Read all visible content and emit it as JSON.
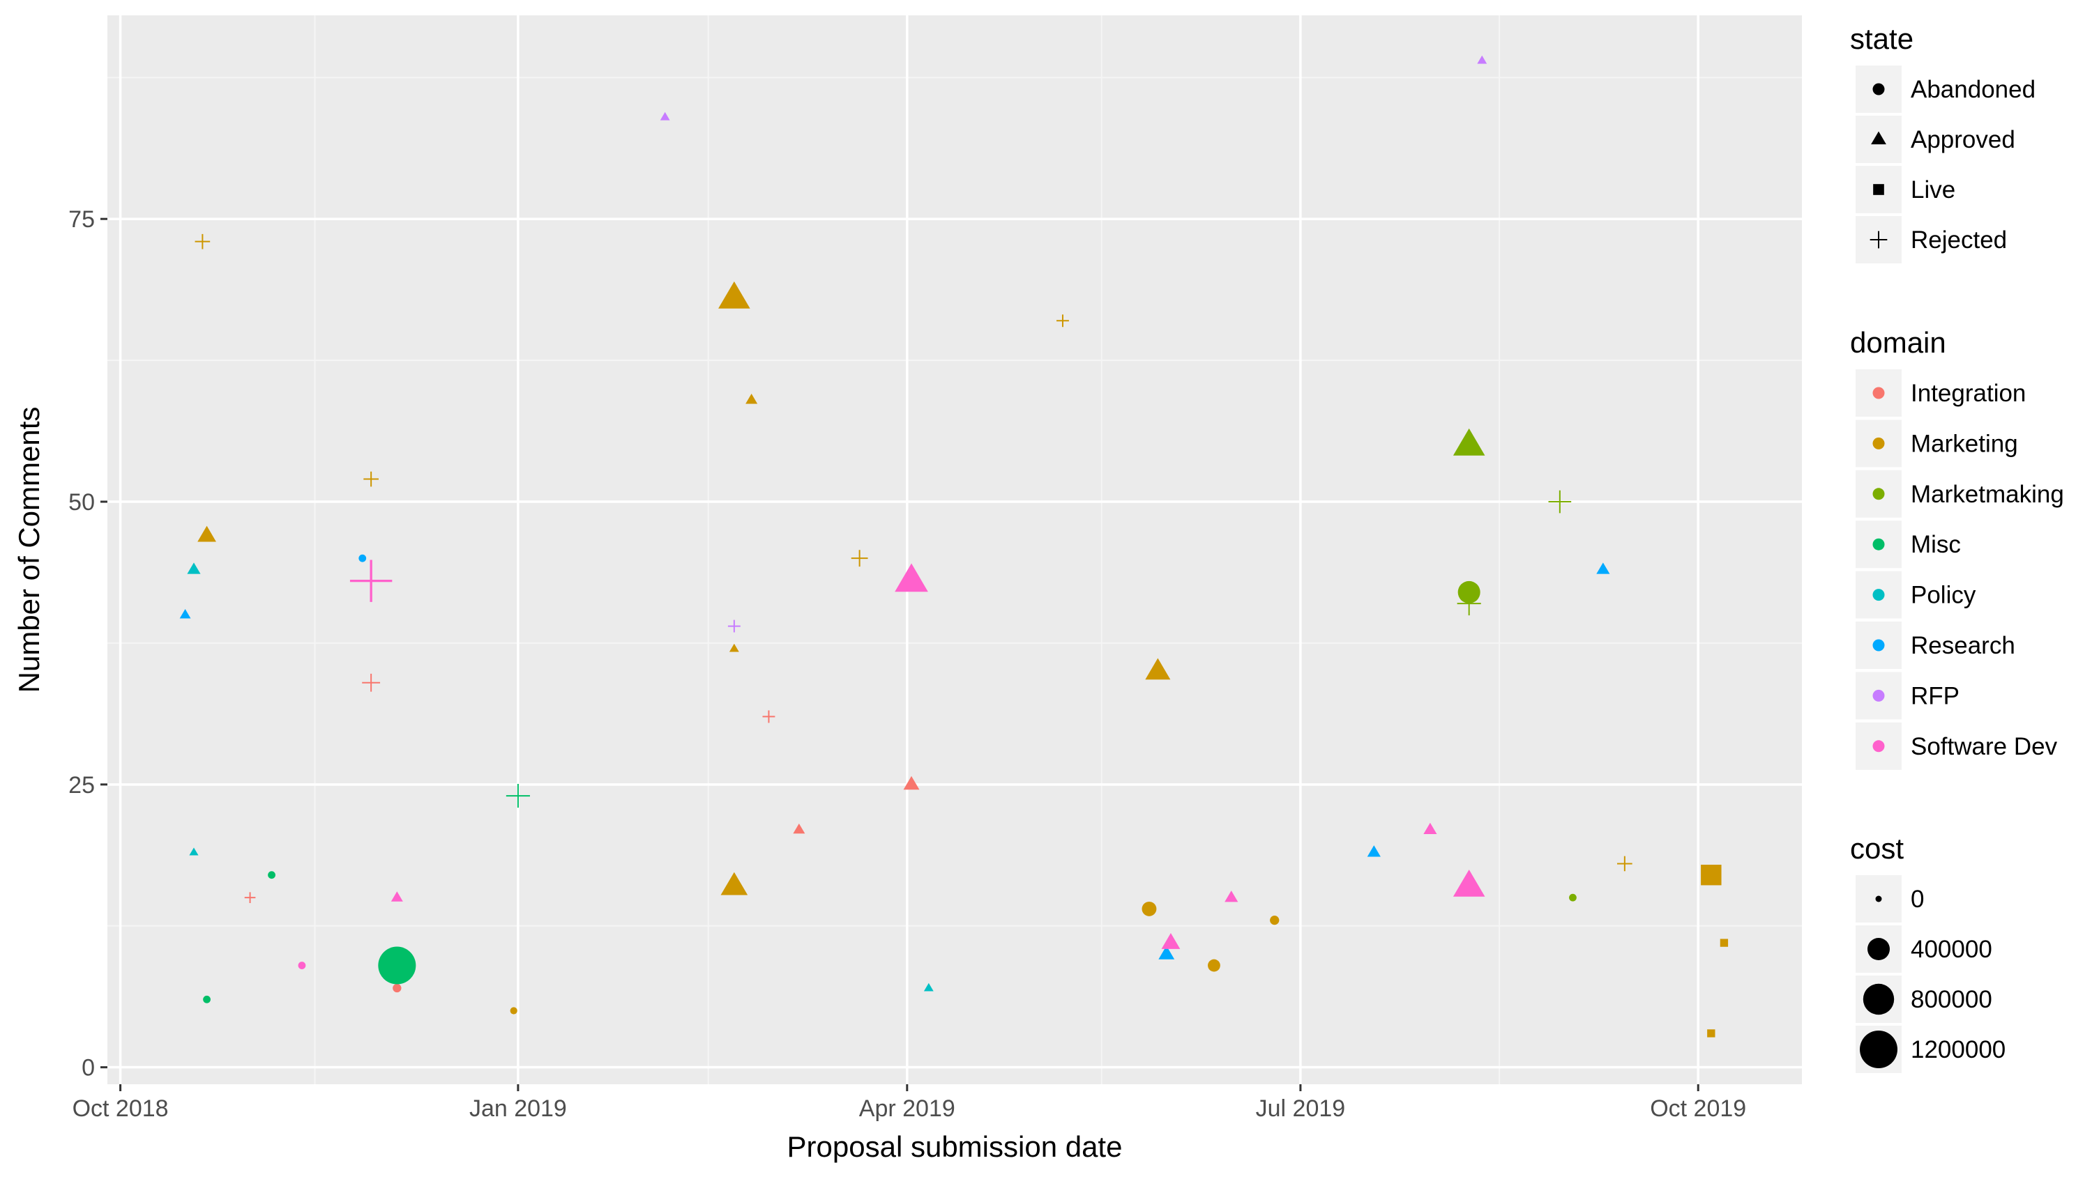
{
  "chart_data": {
    "type": "scatter",
    "title": "",
    "xlabel": "Proposal submission date",
    "ylabel": "Number of Comments",
    "x_ticks": [
      "Oct 2018",
      "Jan 2019",
      "Apr 2019",
      "Jul 2019",
      "Oct 2019"
    ],
    "y_ticks": [
      0,
      25,
      50,
      75
    ],
    "xlim": [
      "2018-09-28",
      "2019-10-25"
    ],
    "ylim": [
      -1.5,
      93
    ],
    "grid": true,
    "legend_position": "right",
    "legends": {
      "state": {
        "title": "state",
        "items": [
          {
            "label": "Abandoned",
            "shape": "circle"
          },
          {
            "label": "Approved",
            "shape": "triangle"
          },
          {
            "label": "Live",
            "shape": "square"
          },
          {
            "label": "Rejected",
            "shape": "plus"
          }
        ]
      },
      "domain": {
        "title": "domain",
        "items": [
          {
            "label": "Integration",
            "color": "#F8766D"
          },
          {
            "label": "Marketing",
            "color": "#CD9600"
          },
          {
            "label": "Marketmaking",
            "color": "#7CAE00"
          },
          {
            "label": "Misc",
            "color": "#00BE67"
          },
          {
            "label": "Policy",
            "color": "#00BFC4"
          },
          {
            "label": "Research",
            "color": "#00A9FF"
          },
          {
            "label": "RFP",
            "color": "#C77CFF"
          },
          {
            "label": "Software Dev",
            "color": "#FF61CC"
          }
        ]
      },
      "cost": {
        "title": "cost",
        "items": [
          {
            "label": "0",
            "value": 0
          },
          {
            "label": "400000",
            "value": 400000
          },
          {
            "label": "800000",
            "value": 800000
          },
          {
            "label": "1200000",
            "value": 1200000
          }
        ]
      }
    },
    "points": [
      {
        "x": "2018-10-16",
        "y": 40,
        "state": "Approved",
        "domain": "Research",
        "cost": 30000
      },
      {
        "x": "2018-10-18",
        "y": 44,
        "state": "Approved",
        "domain": "Policy",
        "cost": 60000
      },
      {
        "x": "2018-10-18",
        "y": 19,
        "state": "Approved",
        "domain": "Policy",
        "cost": 10000
      },
      {
        "x": "2018-10-20",
        "y": 73,
        "state": "Rejected",
        "domain": "Marketing",
        "cost": 60000
      },
      {
        "x": "2018-10-21",
        "y": 47,
        "state": "Approved",
        "domain": "Marketing",
        "cost": 150000
      },
      {
        "x": "2018-10-21",
        "y": 6,
        "state": "Abandoned",
        "domain": "Misc",
        "cost": 15000
      },
      {
        "x": "2018-10-31",
        "y": 15,
        "state": "Rejected",
        "domain": "Integration",
        "cost": 15000
      },
      {
        "x": "2018-11-05",
        "y": 17,
        "state": "Abandoned",
        "domain": "Misc",
        "cost": 15000
      },
      {
        "x": "2018-11-12",
        "y": 9,
        "state": "Abandoned",
        "domain": "Software Dev",
        "cost": 15000
      },
      {
        "x": "2018-11-26",
        "y": 45,
        "state": "Abandoned",
        "domain": "Research",
        "cost": 15000
      },
      {
        "x": "2018-11-28",
        "y": 43,
        "state": "Rejected",
        "domain": "Software Dev",
        "cost": 700000
      },
      {
        "x": "2018-11-28",
        "y": 52,
        "state": "Rejected",
        "domain": "Marketing",
        "cost": 60000
      },
      {
        "x": "2018-11-28",
        "y": 34,
        "state": "Rejected",
        "domain": "Integration",
        "cost": 100000
      },
      {
        "x": "2018-12-04",
        "y": 15,
        "state": "Approved",
        "domain": "Software Dev",
        "cost": 40000
      },
      {
        "x": "2018-12-04",
        "y": 7,
        "state": "Abandoned",
        "domain": "Integration",
        "cost": 30000
      },
      {
        "x": "2018-12-04",
        "y": 9,
        "state": "Abandoned",
        "domain": "Misc",
        "cost": 1200000
      },
      {
        "x": "2018-12-31",
        "y": 5,
        "state": "Abandoned",
        "domain": "Marketing",
        "cost": 10000
      },
      {
        "x": "2019-01-01",
        "y": 24,
        "state": "Rejected",
        "domain": "Misc",
        "cost": 200000
      },
      {
        "x": "2019-02-04",
        "y": 84,
        "state": "Approved",
        "domain": "RFP",
        "cost": 15000
      },
      {
        "x": "2019-02-20",
        "y": 68,
        "state": "Approved",
        "domain": "Marketing",
        "cost": 500000
      },
      {
        "x": "2019-02-20",
        "y": 39,
        "state": "Rejected",
        "domain": "RFP",
        "cost": 30000
      },
      {
        "x": "2019-02-20",
        "y": 37,
        "state": "Approved",
        "domain": "Marketing",
        "cost": 15000
      },
      {
        "x": "2019-02-20",
        "y": 16,
        "state": "Approved",
        "domain": "Marketing",
        "cost": 350000
      },
      {
        "x": "2019-02-24",
        "y": 59,
        "state": "Approved",
        "domain": "Marketing",
        "cost": 40000
      },
      {
        "x": "2019-02-28",
        "y": 31,
        "state": "Rejected",
        "domain": "Integration",
        "cost": 30000
      },
      {
        "x": "2019-03-07",
        "y": 21,
        "state": "Approved",
        "domain": "Integration",
        "cost": 40000
      },
      {
        "x": "2019-03-21",
        "y": 45,
        "state": "Rejected",
        "domain": "Marketing",
        "cost": 80000
      },
      {
        "x": "2019-04-02",
        "y": 43,
        "state": "Approved",
        "domain": "Software Dev",
        "cost": 550000
      },
      {
        "x": "2019-04-02",
        "y": 25,
        "state": "Approved",
        "domain": "Integration",
        "cost": 100000
      },
      {
        "x": "2019-04-06",
        "y": 7,
        "state": "Approved",
        "domain": "Policy",
        "cost": 15000
      },
      {
        "x": "2019-05-07",
        "y": 66,
        "state": "Rejected",
        "domain": "Marketing",
        "cost": 30000
      },
      {
        "x": "2019-05-27",
        "y": 14,
        "state": "Abandoned",
        "domain": "Marketing",
        "cost": 150000
      },
      {
        "x": "2019-05-29",
        "y": 35,
        "state": "Approved",
        "domain": "Marketing",
        "cost": 300000
      },
      {
        "x": "2019-05-31",
        "y": 10,
        "state": "Approved",
        "domain": "Research",
        "cost": 100000
      },
      {
        "x": "2019-06-01",
        "y": 11,
        "state": "Approved",
        "domain": "Software Dev",
        "cost": 150000
      },
      {
        "x": "2019-06-11",
        "y": 9,
        "state": "Abandoned",
        "domain": "Marketing",
        "cost": 100000
      },
      {
        "x": "2019-06-15",
        "y": 15,
        "state": "Approved",
        "domain": "Software Dev",
        "cost": 60000
      },
      {
        "x": "2019-06-25",
        "y": 13,
        "state": "Abandoned",
        "domain": "Marketing",
        "cost": 40000
      },
      {
        "x": "2019-07-18",
        "y": 19,
        "state": "Approved",
        "domain": "Research",
        "cost": 60000
      },
      {
        "x": "2019-07-31",
        "y": 21,
        "state": "Approved",
        "domain": "Software Dev",
        "cost": 60000
      },
      {
        "x": "2019-08-09",
        "y": 55,
        "state": "Approved",
        "domain": "Marketmaking",
        "cost": 500000
      },
      {
        "x": "2019-08-09",
        "y": 42,
        "state": "Abandoned",
        "domain": "Marketmaking",
        "cost": 400000
      },
      {
        "x": "2019-08-09",
        "y": 41,
        "state": "Rejected",
        "domain": "Marketmaking",
        "cost": 200000
      },
      {
        "x": "2019-08-09",
        "y": 16,
        "state": "Approved",
        "domain": "Software Dev",
        "cost": 500000
      },
      {
        "x": "2019-08-12",
        "y": 89,
        "state": "Approved",
        "domain": "RFP",
        "cost": 15000
      },
      {
        "x": "2019-08-30",
        "y": 50,
        "state": "Rejected",
        "domain": "Marketmaking",
        "cost": 180000
      },
      {
        "x": "2019-09-02",
        "y": 15,
        "state": "Abandoned",
        "domain": "Marketmaking",
        "cost": 15000
      },
      {
        "x": "2019-09-09",
        "y": 44,
        "state": "Approved",
        "domain": "Research",
        "cost": 60000
      },
      {
        "x": "2019-09-14",
        "y": 18,
        "state": "Rejected",
        "domain": "Marketing",
        "cost": 60000
      },
      {
        "x": "2019-10-04",
        "y": 17,
        "state": "Live",
        "domain": "Marketing",
        "cost": 400000
      },
      {
        "x": "2019-10-07",
        "y": 11,
        "state": "Live",
        "domain": "Marketing",
        "cost": 30000
      },
      {
        "x": "2019-10-04",
        "y": 3,
        "state": "Live",
        "domain": "Marketing",
        "cost": 30000
      }
    ]
  }
}
